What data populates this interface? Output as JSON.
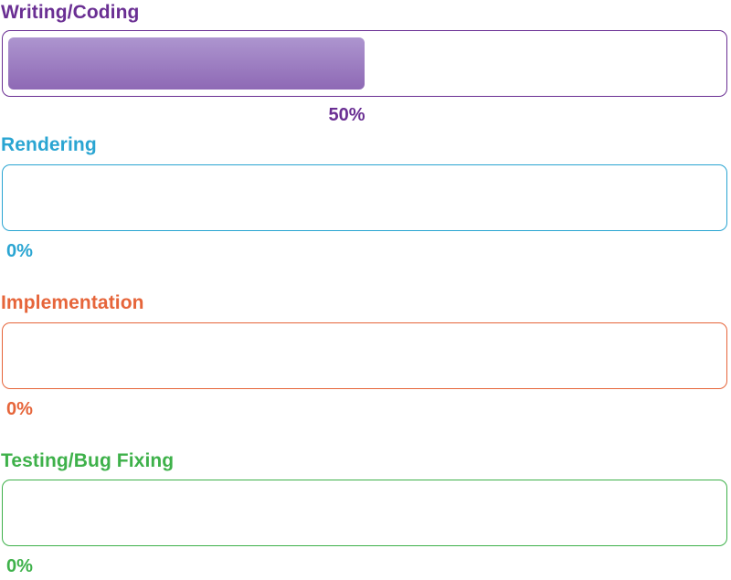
{
  "progress_bars": [
    {
      "label": "Writing/Coding",
      "value": 0.5,
      "percent_text": "50%",
      "color": "#6a2f93",
      "fill_top_color": "#ad95cf",
      "fill_bottom_color": "#8e69b5"
    },
    {
      "label": "Rendering",
      "value": 0,
      "percent_text": "0%",
      "color": "#2aa5d2"
    },
    {
      "label": "Implementation",
      "value": 0,
      "percent_text": "0%",
      "color": "#e6653a"
    },
    {
      "label": "Testing/Bug Fixing",
      "value": 0,
      "percent_text": "0%",
      "color": "#3eb14a"
    }
  ]
}
